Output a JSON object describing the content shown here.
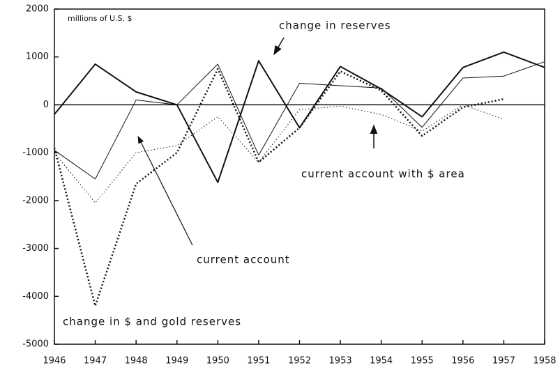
{
  "chart_data": {
    "type": "line",
    "ylabel": "millions of U.S. $",
    "x": [
      1946,
      1947,
      1948,
      1949,
      1950,
      1951,
      1952,
      1953,
      1954,
      1955,
      1956,
      1957,
      1958
    ],
    "xlim": [
      1946,
      1958
    ],
    "xticks": [
      1946,
      1947,
      1948,
      1949,
      1950,
      1951,
      1952,
      1953,
      1954,
      1955,
      1956,
      1957,
      1958
    ],
    "ylim": [
      -5000,
      2000
    ],
    "yticks": [
      -5000,
      -4000,
      -3000,
      -2000,
      -1000,
      0,
      1000,
      2000
    ],
    "series": [
      {
        "name": "change in reserves",
        "color": "#111111",
        "linewidth": 2,
        "style": "solid",
        "values": [
          -200,
          850,
          270,
          0,
          -1620,
          920,
          -480,
          800,
          330,
          -250,
          780,
          1100,
          780
        ]
      },
      {
        "name": "current account",
        "color": "#111111",
        "linewidth": 1,
        "style": "solid",
        "values": [
          -950,
          -1550,
          100,
          0,
          850,
          -1050,
          450,
          400,
          350,
          -470,
          560,
          600,
          900
        ]
      },
      {
        "name": "current account with $ area",
        "color": "#111111",
        "linewidth": 1,
        "style": "dotted",
        "values": [
          -1000,
          -2050,
          -1000,
          -850,
          -250,
          -1200,
          -100,
          -30,
          -200,
          -550,
          0,
          -300,
          null
        ]
      },
      {
        "name": "change in $ and gold reserves",
        "color": "#111111",
        "linewidth": 2.5,
        "style": "dotted",
        "values": [
          -900,
          -4200,
          -1650,
          -1000,
          750,
          -1200,
          -480,
          700,
          300,
          -650,
          -50,
          120,
          null
        ]
      }
    ]
  }
}
